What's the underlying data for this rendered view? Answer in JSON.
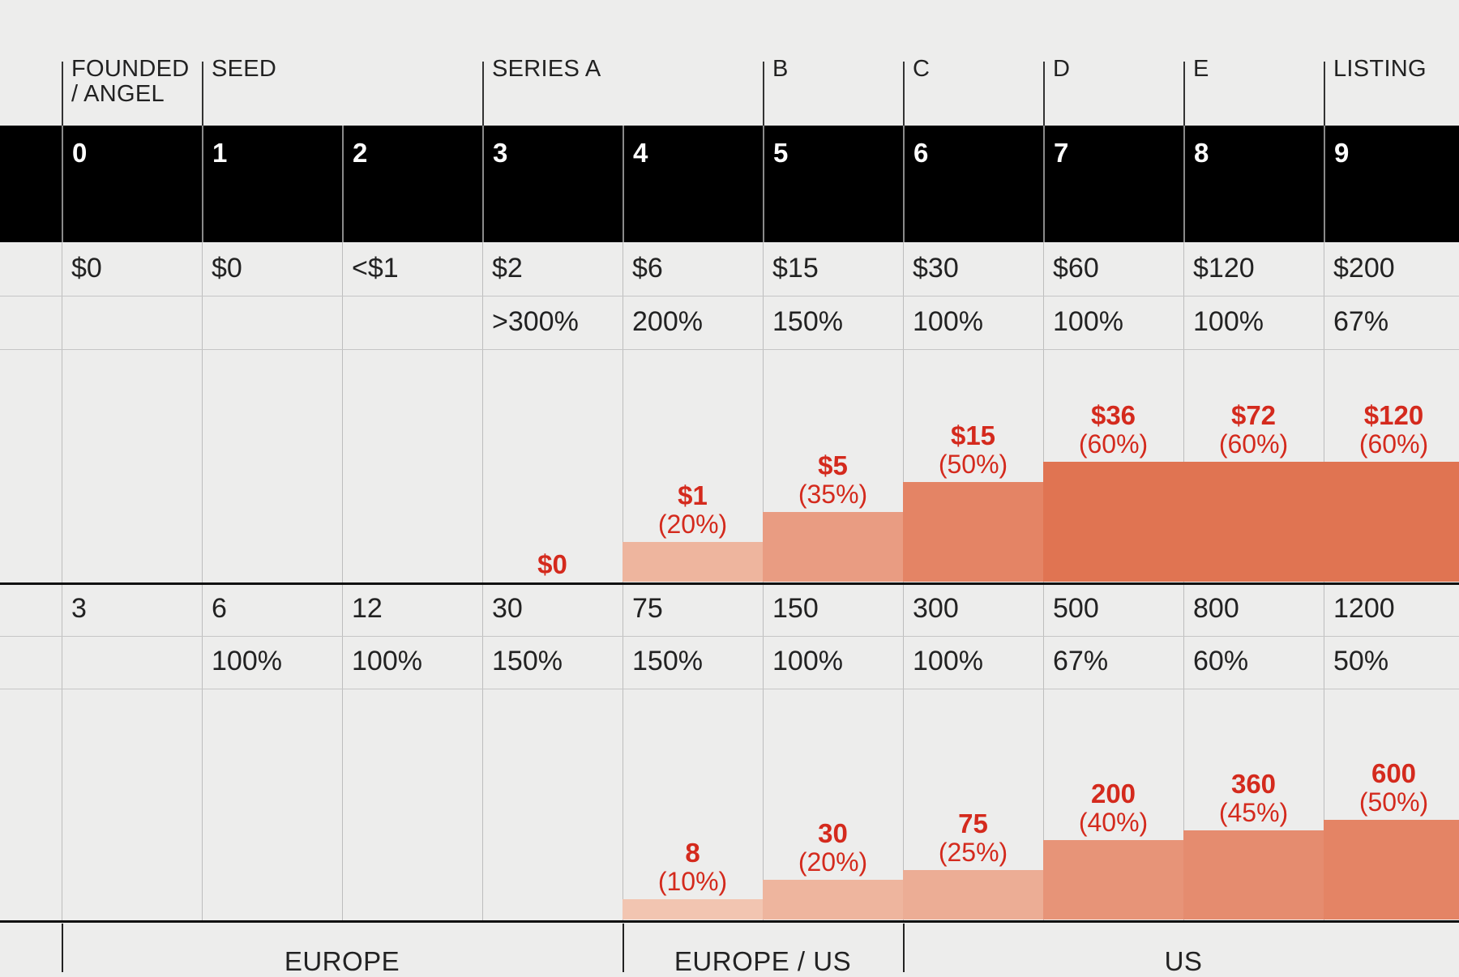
{
  "stages": [
    "FOUNDED\n/ ANGEL",
    "SEED",
    "SERIES A",
    "B",
    "C",
    "D",
    "E",
    "LISTING"
  ],
  "colors": {
    "accent_red": "#d42a1d",
    "band": "#000000",
    "background": "#ededec"
  },
  "chart_data": {
    "type": "table",
    "rounds": [
      "0",
      "1",
      "2",
      "3",
      "4",
      "5",
      "6",
      "7",
      "8",
      "9"
    ],
    "valuation": [
      "$0",
      "$0",
      "<$1",
      "$2",
      "$6",
      "$15",
      "$30",
      "$60",
      "$120",
      "$200"
    ],
    "valuation_growth": [
      "",
      "",
      "",
      ">300%",
      "200%",
      "150%",
      "100%",
      "100%",
      "100%",
      "67%"
    ],
    "bars_top": [
      null,
      null,
      null,
      {
        "label": "$0",
        "pct": "",
        "share": 0
      },
      {
        "label": "$1",
        "pct": "(20%)",
        "share": 20
      },
      {
        "label": "$5",
        "pct": "(35%)",
        "share": 35
      },
      {
        "label": "$15",
        "pct": "(50%)",
        "share": 50
      },
      {
        "label": "$36",
        "pct": "(60%)",
        "share": 60
      },
      {
        "label": "$72",
        "pct": "(60%)",
        "share": 60
      },
      {
        "label": "$120",
        "pct": "(60%)",
        "share": 60
      }
    ],
    "employees": [
      "3",
      "6",
      "12",
      "30",
      "75",
      "150",
      "300",
      "500",
      "800",
      "1200"
    ],
    "employees_growth": [
      "",
      "100%",
      "100%",
      "150%",
      "150%",
      "100%",
      "100%",
      "67%",
      "60%",
      "50%"
    ],
    "bars_bottom": [
      null,
      null,
      null,
      null,
      {
        "label": "8",
        "pct": "(10%)",
        "share": 10
      },
      {
        "label": "30",
        "pct": "(20%)",
        "share": 20
      },
      {
        "label": "75",
        "pct": "(25%)",
        "share": 25
      },
      {
        "label": "200",
        "pct": "(40%)",
        "share": 40
      },
      {
        "label": "360",
        "pct": "(45%)",
        "share": 45
      },
      {
        "label": "600",
        "pct": "(50%)",
        "share": 50
      }
    ],
    "regions": [
      "EUROPE",
      "EUROPE / US",
      "US"
    ]
  }
}
